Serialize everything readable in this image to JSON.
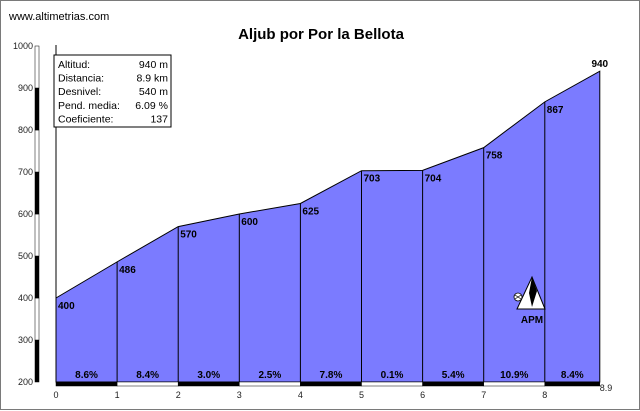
{
  "site": "www.altimetrias.com",
  "chart_data": {
    "type": "area",
    "title": "Aljub por Por la Bellota",
    "xlim": [
      0,
      8.9
    ],
    "ylim": [
      200,
      1000
    ],
    "x_ticks": [
      "0",
      "1",
      "2",
      "3",
      "4",
      "5",
      "6",
      "7",
      "8",
      "8.9"
    ],
    "y_ticks": [
      "200",
      "300",
      "400",
      "500",
      "600",
      "700",
      "800",
      "900",
      "1000"
    ],
    "x": [
      0,
      1,
      2,
      3,
      4,
      5,
      6,
      7,
      8,
      8.9
    ],
    "values": [
      400,
      486,
      570,
      600,
      625,
      703,
      704,
      758,
      867,
      940
    ],
    "value_labels": [
      "400",
      "486",
      "570",
      "600",
      "625",
      "703",
      "704",
      "758",
      "867",
      "940"
    ],
    "gradients": [
      "8.6%",
      "8.4%",
      "3.0%",
      "2.5%",
      "7.8%",
      "0.1%",
      "5.4%",
      "10.9%",
      "8.4%"
    ],
    "fill_color": "#7b7bff",
    "grid": false
  },
  "info_box": {
    "rows": [
      {
        "label": "Altitud:",
        "value": "940 m"
      },
      {
        "label": "Distancia:",
        "value": "8.9 km"
      },
      {
        "label": "Desnivel:",
        "value": "540 m"
      },
      {
        "label": "Pend. media:",
        "value": "6.09 %"
      },
      {
        "label": "Coeficiente:",
        "value": "137"
      }
    ]
  },
  "marker": {
    "label": "APM",
    "icon": "mountain-icon"
  }
}
